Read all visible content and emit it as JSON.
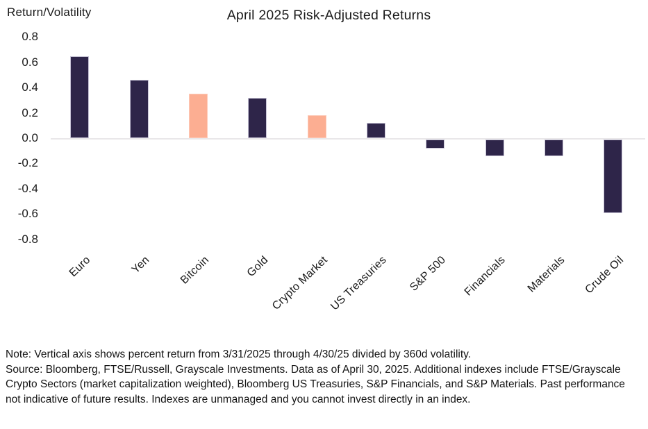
{
  "title": "April 2025 Risk-Adjusted Returns",
  "ylabel": "Return/Volatility",
  "chart_data": {
    "type": "bar",
    "title": "April 2025 Risk-Adjusted Returns",
    "xlabel": "",
    "ylabel": "Return/Volatility",
    "categories": [
      "Euro",
      "Yen",
      "Bitcoin",
      "Gold",
      "Crypto Market",
      "US Treasuries",
      "S&P 500",
      "Financials",
      "Materials",
      "Crude Oil"
    ],
    "values": [
      0.65,
      0.46,
      0.35,
      0.32,
      0.18,
      0.12,
      -0.07,
      -0.13,
      -0.13,
      -0.58
    ],
    "bar_color_keys": [
      "dark",
      "dark",
      "accent",
      "dark",
      "accent",
      "dark",
      "dark",
      "dark",
      "dark",
      "dark"
    ],
    "ylim": [
      -0.8,
      0.8
    ],
    "ytick_labels": [
      "0.8",
      "0.6",
      "0.4",
      "0.2",
      "0.0",
      "-0.2",
      "-0.4",
      "-0.6",
      "-0.8"
    ],
    "grid": false,
    "legend_position": "none",
    "colors": {
      "dark": "#2e2549",
      "dark_border": "#c7c3d6",
      "accent": "#fcae92",
      "accent_border": "#fdcab8",
      "zero_line": "#e9e7e9",
      "text": "#1a1a1a"
    }
  },
  "footnote": {
    "note": "Note: Vertical axis shows percent return from 3/31/2025 through 4/30/25 divided by 360d volatility.",
    "source": "Source: Bloomberg, FTSE/Russell, Grayscale Investments. Data as of April 30, 2025. Additional indexes include FTSE/Grayscale Crypto Sectors (market capitalization weighted), Bloomberg US Treasuries, S&P Financials, and S&P Materials. Past performance not indicative of future results. Indexes are unmanaged and you cannot invest directly in an index."
  }
}
